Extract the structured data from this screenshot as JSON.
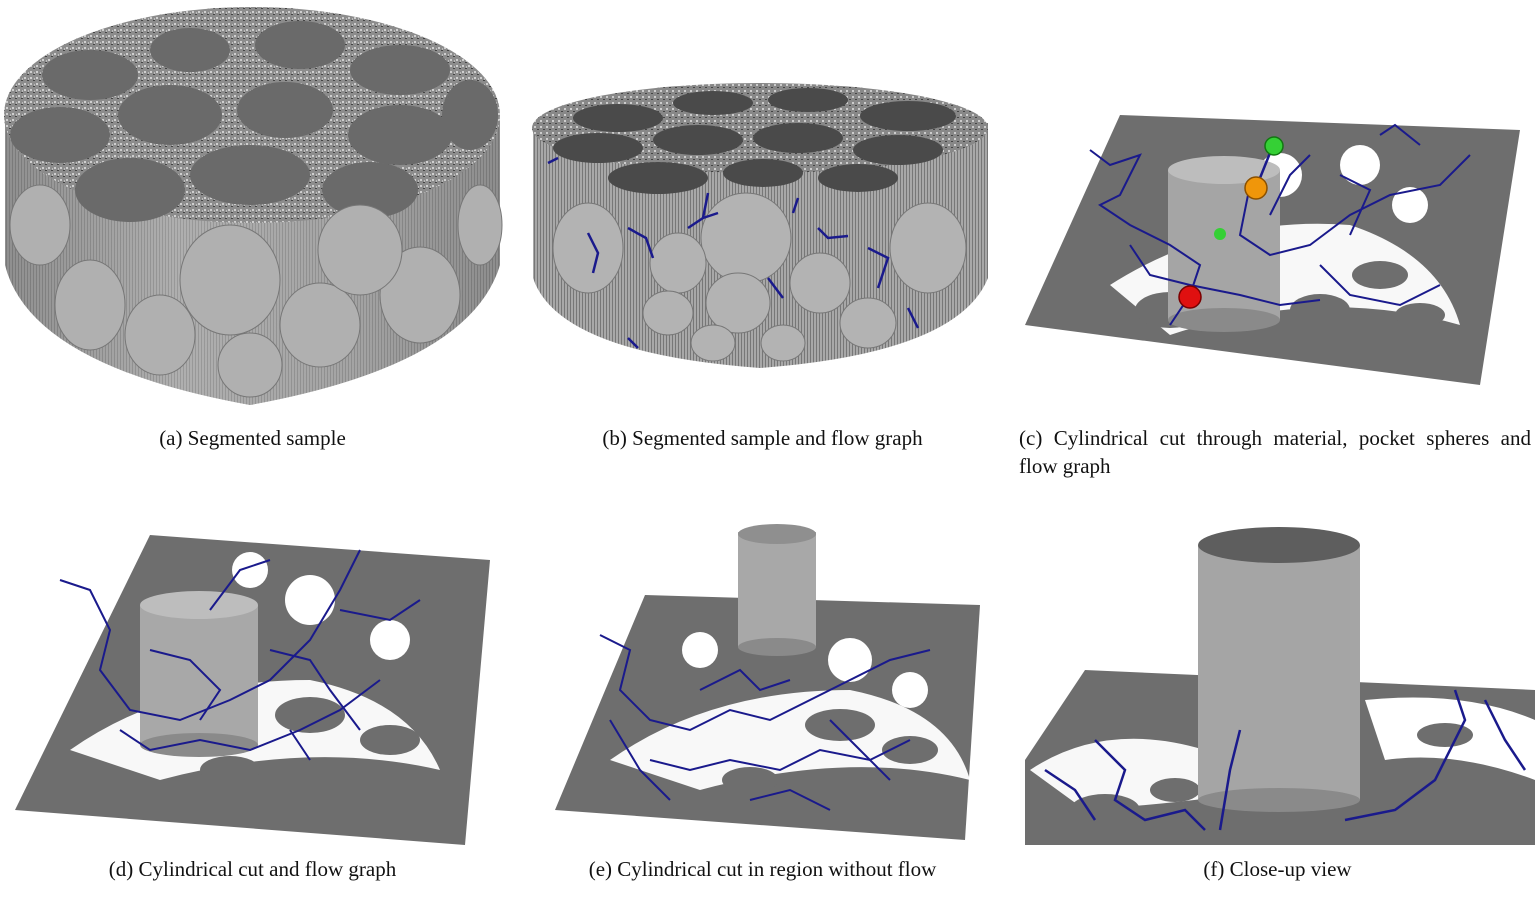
{
  "figure": {
    "panels": [
      {
        "id": "a",
        "caption": "(a) Segmented sample"
      },
      {
        "id": "b",
        "caption": "(b) Segmented sample and flow graph"
      },
      {
        "id": "c",
        "caption": "(c) Cylindrical cut through material, pocket spheres and flow graph"
      },
      {
        "id": "d",
        "caption": "(d) Cylindrical cut and flow graph"
      },
      {
        "id": "e",
        "caption": "(e) Cylindrical cut in region without flow"
      },
      {
        "id": "f",
        "caption": "(f) Close-up view"
      }
    ],
    "colors": {
      "solid": "#8f8f8f",
      "solid_top": "#5f5f5f",
      "slice": "#6e6e6e",
      "pore": "#ffffff",
      "flow_graph": "#1a1a8c",
      "sphere_red": "#e01010",
      "sphere_orange": "#f0960a",
      "sphere_green": "#35d035"
    }
  }
}
